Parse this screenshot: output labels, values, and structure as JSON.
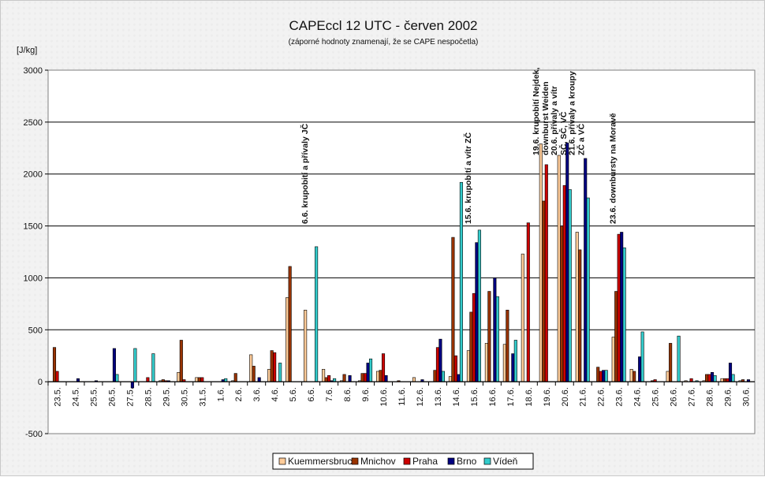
{
  "chart_data": {
    "type": "bar",
    "title": "CAPEccl 12 UTC - červen 2002",
    "subtitle": "(záporné hodnoty znamenají, že se CAPE nespočetla)",
    "ylabel": "[J/kg]",
    "ylim": [
      -500,
      3000
    ],
    "yticks": [
      3000,
      2500,
      2000,
      1500,
      1000,
      500,
      0,
      -500
    ],
    "grid": true,
    "legend_position": "bottom",
    "categories": [
      "23.5.",
      "24.5.",
      "25.5.",
      "26.5.",
      "27.5.",
      "28.5.",
      "29.5.",
      "30.5.",
      "31.5.",
      "1.6.",
      "2.6.",
      "3.6.",
      "4.6.",
      "5.6.",
      "6.6.",
      "7.6.",
      "8.6.",
      "9.6.",
      "10.6.",
      "11.6.",
      "12.6.",
      "13.6.",
      "14.6.",
      "15.6.",
      "16.6.",
      "17.6.",
      "18.6.",
      "19.6.",
      "20.6.",
      "21.6.",
      "22.6.",
      "23.6.",
      "24.6.",
      "25.6.",
      "26.6.",
      "27.6.",
      "28.6.",
      "29.6.",
      "30.6."
    ],
    "series": [
      {
        "name": "Kuemmersbruck",
        "color": "#FFCC99",
        "values": [
          0,
          0,
          0,
          0,
          0,
          0,
          10,
          90,
          40,
          0,
          10,
          260,
          120,
          810,
          690,
          120,
          10,
          10,
          100,
          0,
          40,
          0,
          50,
          300,
          370,
          360,
          1230,
          2290,
          2180,
          1440,
          0,
          430,
          120,
          0,
          100,
          10,
          10,
          30,
          10
        ]
      },
      {
        "name": "Mnichov",
        "color": "#993300",
        "values": [
          330,
          0,
          0,
          0,
          0,
          0,
          20,
          400,
          40,
          0,
          80,
          150,
          300,
          1110,
          0,
          40,
          70,
          80,
          110,
          10,
          0,
          110,
          1390,
          670,
          870,
          690,
          0,
          1740,
          1500,
          1270,
          140,
          870,
          100,
          10,
          370,
          0,
          70,
          30,
          20
        ]
      },
      {
        "name": "Praha",
        "color": "#CC0000",
        "values": [
          100,
          0,
          0,
          0,
          0,
          40,
          10,
          20,
          40,
          0,
          0,
          0,
          280,
          0,
          0,
          60,
          0,
          80,
          270,
          0,
          0,
          330,
          250,
          850,
          0,
          0,
          1530,
          2090,
          1890,
          0,
          100,
          1420,
          0,
          20,
          0,
          30,
          70,
          30,
          0
        ]
      },
      {
        "name": "Brno",
        "color": "#000080",
        "values": [
          0,
          30,
          10,
          320,
          -60,
          0,
          10,
          0,
          0,
          20,
          0,
          40,
          0,
          0,
          0,
          10,
          60,
          180,
          60,
          0,
          20,
          410,
          70,
          1340,
          1000,
          270,
          0,
          0,
          2300,
          2150,
          110,
          1440,
          240,
          0,
          0,
          0,
          90,
          180,
          20
        ]
      },
      {
        "name": "Vídeň",
        "color": "#33CCCC",
        "values": [
          0,
          0,
          0,
          70,
          320,
          270,
          0,
          0,
          0,
          30,
          0,
          0,
          180,
          0,
          1300,
          30,
          0,
          220,
          0,
          0,
          0,
          100,
          1920,
          1460,
          820,
          400,
          0,
          0,
          1850,
          1770,
          110,
          1290,
          480,
          0,
          440,
          10,
          60,
          70,
          0
        ]
      }
    ],
    "annotations": [
      {
        "category": "6.6.",
        "lines": [
          "6.6. krupobití a přívaly JČ"
        ]
      },
      {
        "category": "15.6.",
        "lines": [
          "15.6. krupobití a vítr ZČ"
        ]
      },
      {
        "category": "19.6.",
        "lines": [
          "19.6. krupobití Nejdek,",
          "downburst Weiden"
        ]
      },
      {
        "category": "20.6.",
        "lines": [
          "20.6. přívaly a vítr",
          "SČ, SČ, VČ"
        ]
      },
      {
        "category": "21.6.",
        "lines": [
          "21.6. přívaly a kroupy",
          "ZČ a VČ"
        ]
      },
      {
        "category": "23.6.",
        "lines": [
          "23.6. downbursty na Moravě"
        ]
      }
    ]
  }
}
